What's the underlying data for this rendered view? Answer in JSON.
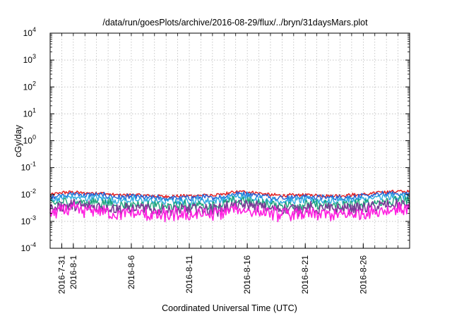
{
  "chart_data": {
    "type": "line",
    "title": "/data/run/goesPlots/archive/2016-08-29/flux/../bryn/31daysMars.plot",
    "xlabel": "Coordinated Universal Time (UTC)",
    "ylabel": "cGy/day",
    "y_scale": "log",
    "ylim": [
      0.0001,
      10000
    ],
    "y_ticks": [
      {
        "value": 0.0001,
        "base": "10",
        "exp": "-4"
      },
      {
        "value": 0.001,
        "base": "10",
        "exp": "-3"
      },
      {
        "value": 0.01,
        "base": "10",
        "exp": "-2"
      },
      {
        "value": 0.1,
        "base": "10",
        "exp": "-1"
      },
      {
        "value": 1,
        "base": "10",
        "exp": "0"
      },
      {
        "value": 10,
        "base": "10",
        "exp": "1"
      },
      {
        "value": 100,
        "base": "10",
        "exp": "2"
      },
      {
        "value": 1000,
        "base": "10",
        "exp": "3"
      },
      {
        "value": 10000,
        "base": "10",
        "exp": "4"
      }
    ],
    "xlim": [
      "2016-07-30",
      "2016-08-30"
    ],
    "x_ticks": [
      "2016-7-31",
      "2016-8-1",
      "2016-8-6",
      "2016-8-11",
      "2016-8-16",
      "2016-8-21",
      "2016-8-26"
    ],
    "grid": true,
    "legend": "none",
    "series": [
      {
        "color": "#e41a1c",
        "points": [
          [
            "2016-07-30",
            0.0095
          ],
          [
            "2016-07-31",
            0.0118
          ],
          [
            "2016-08-01",
            0.0122
          ],
          [
            "2016-08-02",
            0.0112
          ],
          [
            "2016-08-03",
            0.0118
          ],
          [
            "2016-08-04",
            0.0104
          ],
          [
            "2016-08-05",
            0.0092
          ],
          [
            "2016-08-06",
            0.0098
          ],
          [
            "2016-08-07",
            0.0092
          ],
          [
            "2016-08-08",
            0.0088
          ],
          [
            "2016-08-09",
            0.0084
          ],
          [
            "2016-08-10",
            0.0087
          ],
          [
            "2016-08-11",
            0.009
          ],
          [
            "2016-08-12",
            0.0092
          ],
          [
            "2016-08-13",
            0.009
          ],
          [
            "2016-08-14",
            0.0102
          ],
          [
            "2016-08-15",
            0.0128
          ],
          [
            "2016-08-16",
            0.0125
          ],
          [
            "2016-08-17",
            0.0112
          ],
          [
            "2016-08-18",
            0.0096
          ],
          [
            "2016-08-19",
            0.0092
          ],
          [
            "2016-08-20",
            0.0093
          ],
          [
            "2016-08-21",
            0.0096
          ],
          [
            "2016-08-22",
            0.0094
          ],
          [
            "2016-08-23",
            0.009
          ],
          [
            "2016-08-24",
            0.0092
          ],
          [
            "2016-08-25",
            0.0096
          ],
          [
            "2016-08-26",
            0.0098
          ],
          [
            "2016-08-27",
            0.0112
          ],
          [
            "2016-08-28",
            0.0125
          ],
          [
            "2016-08-29",
            0.013
          ],
          [
            "2016-08-30",
            0.0125
          ]
        ]
      },
      {
        "color": "#1f5fd6",
        "points": [
          [
            "2016-07-30",
            0.008
          ],
          [
            "2016-07-31",
            0.0098
          ],
          [
            "2016-08-01",
            0.0104
          ],
          [
            "2016-08-02",
            0.0094
          ],
          [
            "2016-08-03",
            0.0098
          ],
          [
            "2016-08-04",
            0.0088
          ],
          [
            "2016-08-05",
            0.0078
          ],
          [
            "2016-08-06",
            0.0082
          ],
          [
            "2016-08-07",
            0.0078
          ],
          [
            "2016-08-08",
            0.0074
          ],
          [
            "2016-08-09",
            0.0071
          ],
          [
            "2016-08-10",
            0.0073
          ],
          [
            "2016-08-11",
            0.0076
          ],
          [
            "2016-08-12",
            0.0078
          ],
          [
            "2016-08-13",
            0.0076
          ],
          [
            "2016-08-14",
            0.0087
          ],
          [
            "2016-08-15",
            0.0108
          ],
          [
            "2016-08-16",
            0.0106
          ],
          [
            "2016-08-17",
            0.0094
          ],
          [
            "2016-08-18",
            0.0081
          ],
          [
            "2016-08-19",
            0.0077
          ],
          [
            "2016-08-20",
            0.0078
          ],
          [
            "2016-08-21",
            0.0081
          ],
          [
            "2016-08-22",
            0.0079
          ],
          [
            "2016-08-23",
            0.0076
          ],
          [
            "2016-08-24",
            0.0078
          ],
          [
            "2016-08-25",
            0.0081
          ],
          [
            "2016-08-26",
            0.0083
          ],
          [
            "2016-08-27",
            0.0094
          ],
          [
            "2016-08-28",
            0.0105
          ],
          [
            "2016-08-29",
            0.011
          ],
          [
            "2016-08-30",
            0.0106
          ]
        ]
      },
      {
        "color": "#2aa9e0",
        "points": [
          [
            "2016-07-30",
            0.0062
          ],
          [
            "2016-07-31",
            0.0075
          ],
          [
            "2016-08-01",
            0.008
          ],
          [
            "2016-08-02",
            0.0072
          ],
          [
            "2016-08-03",
            0.0075
          ],
          [
            "2016-08-04",
            0.0067
          ],
          [
            "2016-08-05",
            0.006
          ],
          [
            "2016-08-06",
            0.0063
          ],
          [
            "2016-08-07",
            0.006
          ],
          [
            "2016-08-08",
            0.0057
          ],
          [
            "2016-08-09",
            0.0054
          ],
          [
            "2016-08-10",
            0.0056
          ],
          [
            "2016-08-11",
            0.0058
          ],
          [
            "2016-08-12",
            0.006
          ],
          [
            "2016-08-13",
            0.0058
          ],
          [
            "2016-08-14",
            0.0066
          ],
          [
            "2016-08-15",
            0.0082
          ],
          [
            "2016-08-16",
            0.0081
          ],
          [
            "2016-08-17",
            0.0072
          ],
          [
            "2016-08-18",
            0.0062
          ],
          [
            "2016-08-19",
            0.0059
          ],
          [
            "2016-08-20",
            0.006
          ],
          [
            "2016-08-21",
            0.0062
          ],
          [
            "2016-08-22",
            0.006
          ],
          [
            "2016-08-23",
            0.0058
          ],
          [
            "2016-08-24",
            0.006
          ],
          [
            "2016-08-25",
            0.0062
          ],
          [
            "2016-08-26",
            0.0064
          ],
          [
            "2016-08-27",
            0.0072
          ],
          [
            "2016-08-28",
            0.008
          ],
          [
            "2016-08-29",
            0.0084
          ],
          [
            "2016-08-30",
            0.0081
          ]
        ]
      },
      {
        "color": "#1aa37a",
        "points": [
          [
            "2016-07-30",
            0.0042
          ],
          [
            "2016-07-31",
            0.0052
          ],
          [
            "2016-08-01",
            0.0055
          ],
          [
            "2016-08-02",
            0.0049
          ],
          [
            "2016-08-03",
            0.0052
          ],
          [
            "2016-08-04",
            0.0046
          ],
          [
            "2016-08-05",
            0.004
          ],
          [
            "2016-08-06",
            0.0043
          ],
          [
            "2016-08-07",
            0.004
          ],
          [
            "2016-08-08",
            0.0038
          ],
          [
            "2016-08-09",
            0.0036
          ],
          [
            "2016-08-10",
            0.0037
          ],
          [
            "2016-08-11",
            0.0039
          ],
          [
            "2016-08-12",
            0.004
          ],
          [
            "2016-08-13",
            0.0039
          ],
          [
            "2016-08-14",
            0.0045
          ],
          [
            "2016-08-15",
            0.0057
          ],
          [
            "2016-08-16",
            0.0056
          ],
          [
            "2016-08-17",
            0.0049
          ],
          [
            "2016-08-18",
            0.0042
          ],
          [
            "2016-08-19",
            0.004
          ],
          [
            "2016-08-20",
            0.0041
          ],
          [
            "2016-08-21",
            0.0042
          ],
          [
            "2016-08-22",
            0.0041
          ],
          [
            "2016-08-23",
            0.0039
          ],
          [
            "2016-08-24",
            0.0041
          ],
          [
            "2016-08-25",
            0.0042
          ],
          [
            "2016-08-26",
            0.0044
          ],
          [
            "2016-08-27",
            0.005
          ],
          [
            "2016-08-28",
            0.0056
          ],
          [
            "2016-08-29",
            0.006
          ],
          [
            "2016-08-30",
            0.0057
          ]
        ]
      },
      {
        "color": "#7b3a96",
        "points": [
          [
            "2016-07-30",
            0.003
          ],
          [
            "2016-07-31",
            0.0037
          ],
          [
            "2016-08-01",
            0.004
          ],
          [
            "2016-08-02",
            0.0035
          ],
          [
            "2016-08-03",
            0.0037
          ],
          [
            "2016-08-04",
            0.0033
          ],
          [
            "2016-08-05",
            0.0029
          ],
          [
            "2016-08-06",
            0.0031
          ],
          [
            "2016-08-07",
            0.0029
          ],
          [
            "2016-08-08",
            0.0027
          ],
          [
            "2016-08-09",
            0.0026
          ],
          [
            "2016-08-10",
            0.0027
          ],
          [
            "2016-08-11",
            0.0028
          ],
          [
            "2016-08-12",
            0.0029
          ],
          [
            "2016-08-13",
            0.0028
          ],
          [
            "2016-08-14",
            0.0032
          ],
          [
            "2016-08-15",
            0.0041
          ],
          [
            "2016-08-16",
            0.004
          ],
          [
            "2016-08-17",
            0.0035
          ],
          [
            "2016-08-18",
            0.003
          ],
          [
            "2016-08-19",
            0.0029
          ],
          [
            "2016-08-20",
            0.0029
          ],
          [
            "2016-08-21",
            0.003
          ],
          [
            "2016-08-22",
            0.0029
          ],
          [
            "2016-08-23",
            0.0028
          ],
          [
            "2016-08-24",
            0.0029
          ],
          [
            "2016-08-25",
            0.003
          ],
          [
            "2016-08-26",
            0.0031
          ],
          [
            "2016-08-27",
            0.0036
          ],
          [
            "2016-08-28",
            0.004
          ],
          [
            "2016-08-29",
            0.0043
          ],
          [
            "2016-08-30",
            0.0041
          ]
        ]
      },
      {
        "color": "#ff1fe0",
        "points": [
          [
            "2016-07-30",
            0.002
          ],
          [
            "2016-07-31",
            0.0025
          ],
          [
            "2016-08-01",
            0.0027
          ],
          [
            "2016-08-02",
            0.0023
          ],
          [
            "2016-08-03",
            0.0025
          ],
          [
            "2016-08-04",
            0.0021
          ],
          [
            "2016-08-05",
            0.0018
          ],
          [
            "2016-08-06",
            0.002
          ],
          [
            "2016-08-07",
            0.0018
          ],
          [
            "2016-08-08",
            0.0017
          ],
          [
            "2016-08-09",
            0.0016
          ],
          [
            "2016-08-10",
            0.0017
          ],
          [
            "2016-08-11",
            0.0018
          ],
          [
            "2016-08-12",
            0.0018
          ],
          [
            "2016-08-13",
            0.0018
          ],
          [
            "2016-08-14",
            0.0021
          ],
          [
            "2016-08-15",
            0.0028
          ],
          [
            "2016-08-16",
            0.0027
          ],
          [
            "2016-08-17",
            0.0023
          ],
          [
            "2016-08-18",
            0.0019
          ],
          [
            "2016-08-19",
            0.0018
          ],
          [
            "2016-08-20",
            0.0018
          ],
          [
            "2016-08-21",
            0.0019
          ],
          [
            "2016-08-22",
            0.0018
          ],
          [
            "2016-08-23",
            0.0017
          ],
          [
            "2016-08-24",
            0.0018
          ],
          [
            "2016-08-25",
            0.0019
          ],
          [
            "2016-08-26",
            0.002
          ],
          [
            "2016-08-27",
            0.0024
          ],
          [
            "2016-08-28",
            0.0027
          ],
          [
            "2016-08-29",
            0.003
          ],
          [
            "2016-08-30",
            0.0028
          ]
        ]
      }
    ]
  }
}
